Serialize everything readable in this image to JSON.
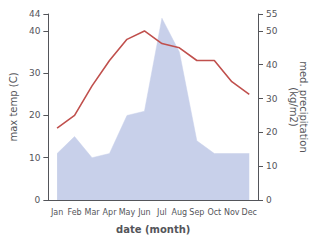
{
  "chart_data": {
    "type": "line",
    "categories": [
      "Jan",
      "Feb",
      "Mar",
      "Apr",
      "May",
      "Jun",
      "Jul",
      "Aug",
      "Sep",
      "Oct",
      "Nov",
      "Dec"
    ],
    "series": [
      {
        "type": "area",
        "color": "#c8d0ea",
        "values": [
          11,
          15,
          10,
          11,
          20,
          21,
          43,
          35,
          14,
          11,
          11,
          11
        ]
      },
      {
        "type": "line",
        "color": "#c0504d",
        "values": [
          17,
          20,
          27,
          33,
          38,
          40,
          37,
          36,
          33,
          33,
          28,
          25
        ]
      }
    ],
    "xlabel": "date (month)",
    "ylabel": "max temp (C)",
    "y2label": "med. precipitation\n(kg/m2)",
    "ylim": [
      0,
      44
    ],
    "yticks": [
      0,
      10,
      20,
      30,
      40
    ],
    "y2lim": [
      0,
      55
    ],
    "y2ticks": [
      0,
      10,
      20,
      30,
      40,
      50
    ],
    "grid": false
  }
}
